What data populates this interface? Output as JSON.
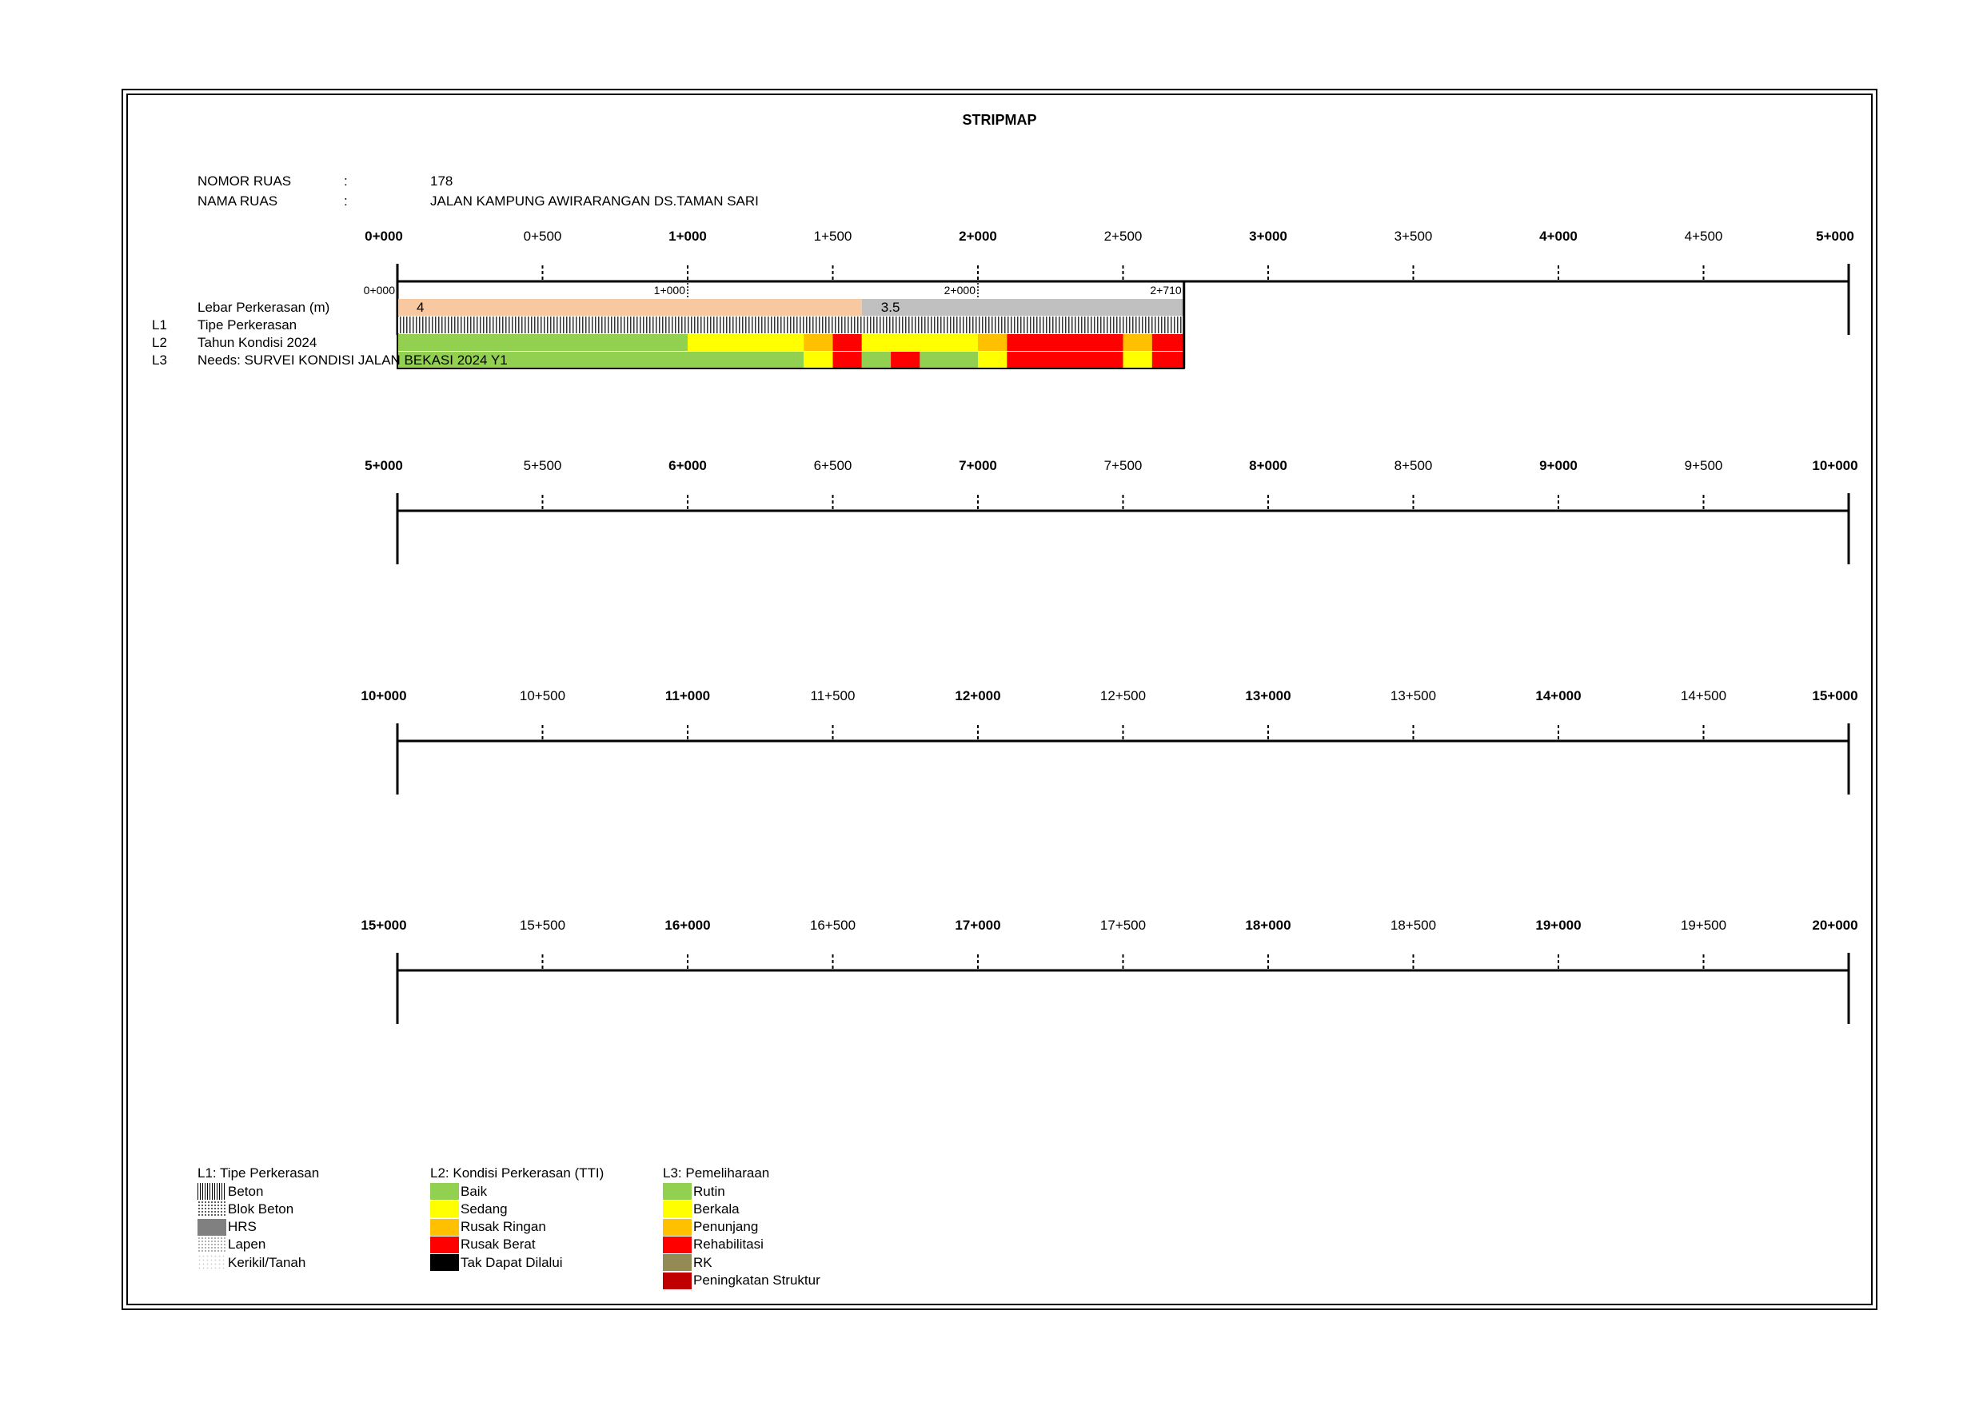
{
  "title": "STRIPMAP",
  "header": {
    "nomor_label": "NOMOR RUAS",
    "nomor_colon": ":",
    "nomor_value": "178",
    "nama_label": "NAMA RUAS",
    "nama_colon": ":",
    "nama_value": "JALAN KAMPUNG AWIRARANGAN DS.TAMAN SARI"
  },
  "strips": [
    {
      "labels": [
        "0+000",
        "0+500",
        "1+000",
        "1+500",
        "2+000",
        "2+500",
        "3+000",
        "3+500",
        "4+000",
        "4+500",
        "5+000"
      ]
    },
    {
      "labels": [
        "5+000",
        "5+500",
        "6+000",
        "6+500",
        "7+000",
        "7+500",
        "8+000",
        "8+500",
        "9+000",
        "9+500",
        "10+000"
      ]
    },
    {
      "labels": [
        "10+000",
        "10+500",
        "11+000",
        "11+500",
        "12+000",
        "12+500",
        "13+000",
        "13+500",
        "14+000",
        "14+500",
        "15+000"
      ]
    },
    {
      "labels": [
        "15+000",
        "15+500",
        "16+000",
        "16+500",
        "17+000",
        "17+500",
        "18+000",
        "18+500",
        "19+000",
        "19+500",
        "20+000"
      ]
    }
  ],
  "segment_markers": [
    {
      "km": 0,
      "label": "0+000"
    },
    {
      "km": 1,
      "label": "1+000"
    },
    {
      "km": 2,
      "label": "2+000"
    },
    {
      "km": 2.71,
      "label": "2+710"
    }
  ],
  "row_labels": {
    "lebar": "Lebar Perkerasan (m)",
    "l1_code": "L1",
    "l1": "Tipe Perkerasan",
    "l2_code": "L2",
    "l2": "Tahun Kondisi 2024",
    "l3_code": "L3",
    "l3": "Needs: SURVEI KONDISI JALAN BEKASI 2024 Y1"
  },
  "chart_data": {
    "type": "stripmap",
    "road_length_km": 2.71,
    "scale_km_per_strip": 5,
    "lebar": [
      {
        "from": 0,
        "to": 1.6,
        "value": "4",
        "color": "#f8c8a0"
      },
      {
        "from": 1.6,
        "to": 2.71,
        "value": "3.5",
        "color": "#c0c0c0"
      }
    ],
    "l1_tipe": [
      {
        "from": 0,
        "to": 2.71,
        "type": "Beton"
      }
    ],
    "l2_kondisi": [
      {
        "from": 0,
        "to": 1.0,
        "status": "Baik"
      },
      {
        "from": 1.0,
        "to": 1.4,
        "status": "Sedang"
      },
      {
        "from": 1.4,
        "to": 1.5,
        "status": "Rusak Ringan"
      },
      {
        "from": 1.5,
        "to": 1.6,
        "status": "Rusak Berat"
      },
      {
        "from": 1.6,
        "to": 2.0,
        "status": "Sedang"
      },
      {
        "from": 2.0,
        "to": 2.1,
        "status": "Rusak Ringan"
      },
      {
        "from": 2.1,
        "to": 2.5,
        "status": "Rusak Berat"
      },
      {
        "from": 2.5,
        "to": 2.6,
        "status": "Rusak Ringan"
      },
      {
        "from": 2.6,
        "to": 2.71,
        "status": "Rusak Berat"
      }
    ],
    "l3_needs": [
      {
        "from": 0,
        "to": 1.4,
        "status": "Rutin"
      },
      {
        "from": 1.4,
        "to": 1.5,
        "status": "Berkala"
      },
      {
        "from": 1.5,
        "to": 1.6,
        "status": "Rehabilitasi"
      },
      {
        "from": 1.6,
        "to": 1.7,
        "status": "Rutin"
      },
      {
        "from": 1.7,
        "to": 1.8,
        "status": "Rehabilitasi"
      },
      {
        "from": 1.8,
        "to": 2.0,
        "status": "Rutin"
      },
      {
        "from": 2.0,
        "to": 2.1,
        "status": "Berkala"
      },
      {
        "from": 2.1,
        "to": 2.5,
        "status": "Rehabilitasi"
      },
      {
        "from": 2.5,
        "to": 2.6,
        "status": "Berkala"
      },
      {
        "from": 2.6,
        "to": 2.71,
        "status": "Rehabilitasi"
      }
    ],
    "colors": {
      "Baik": "#92d050",
      "Sedang": "#ffff00",
      "Rusak Ringan": "#ffc000",
      "Rusak Berat": "#ff0000",
      "Tak Dapat Dilalui": "#000000",
      "Rutin": "#92d050",
      "Berkala": "#ffff00",
      "Penunjang": "#ffc000",
      "Rehabilitasi": "#ff0000",
      "RK": "#948a54",
      "Peningkatan Struktur": "#c00000"
    }
  },
  "legend": {
    "l1": {
      "title": "L1: Tipe Perkerasan",
      "items": [
        {
          "label": "Beton",
          "pattern": "beton"
        },
        {
          "label": "Blok Beton",
          "pattern": "blok"
        },
        {
          "label": "HRS",
          "pattern": "hrs"
        },
        {
          "label": "Lapen",
          "pattern": "lapen"
        },
        {
          "label": "Kerikil/Tanah",
          "pattern": "kerikil"
        }
      ]
    },
    "l2": {
      "title": "L2: Kondisi Perkerasan (TTI)",
      "items": [
        {
          "label": "Baik",
          "color": "#92d050"
        },
        {
          "label": "Sedang",
          "color": "#ffff00"
        },
        {
          "label": "Rusak Ringan",
          "color": "#ffc000"
        },
        {
          "label": "Rusak Berat",
          "color": "#ff0000"
        },
        {
          "label": "Tak Dapat Dilalui",
          "color": "#000000"
        }
      ]
    },
    "l3": {
      "title": "L3: Pemeliharaan",
      "items": [
        {
          "label": "Rutin",
          "color": "#92d050"
        },
        {
          "label": "Berkala",
          "color": "#ffff00"
        },
        {
          "label": "Penunjang",
          "color": "#ffc000"
        },
        {
          "label": "Rehabilitasi",
          "color": "#ff0000"
        },
        {
          "label": "RK",
          "color": "#948a54"
        },
        {
          "label": "Peningkatan Struktur",
          "color": "#c00000"
        }
      ]
    }
  }
}
